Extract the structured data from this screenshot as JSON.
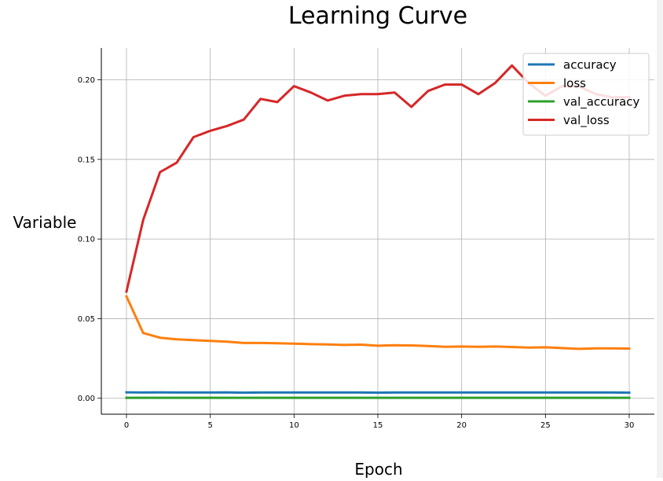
{
  "chart_data": {
    "type": "line",
    "title": "Learning Curve",
    "xlabel": "Epoch",
    "ylabel": "Variable",
    "xlim": [
      -1.5,
      31.5
    ],
    "ylim": [
      -0.01,
      0.22
    ],
    "xticks": [
      0,
      5,
      10,
      15,
      20,
      25,
      30
    ],
    "xtick_labels": [
      "0",
      "5",
      "10",
      "15",
      "20",
      "25",
      "30"
    ],
    "yticks": [
      0.0,
      0.05,
      0.1,
      0.15,
      0.2
    ],
    "ytick_labels": [
      "0.00",
      "0.05",
      "0.10",
      "0.15",
      "0.20"
    ],
    "grid": true,
    "legend_position": "top-right",
    "x": [
      0,
      1,
      2,
      3,
      4,
      5,
      6,
      7,
      8,
      9,
      10,
      11,
      12,
      13,
      14,
      15,
      16,
      17,
      18,
      19,
      20,
      21,
      22,
      23,
      24,
      25,
      26,
      27,
      28,
      29,
      30
    ],
    "series": [
      {
        "name": "accuracy",
        "color": "#1f77b4",
        "values": [
          0.0037,
          0.0036,
          0.0037,
          0.0036,
          0.0036,
          0.0036,
          0.0037,
          0.0035,
          0.0036,
          0.0036,
          0.0036,
          0.0036,
          0.0036,
          0.0036,
          0.0036,
          0.0035,
          0.0036,
          0.0036,
          0.0036,
          0.0036,
          0.0036,
          0.0036,
          0.0036,
          0.0036,
          0.0036,
          0.0036,
          0.0036,
          0.0036,
          0.0036,
          0.0036,
          0.0035
        ]
      },
      {
        "name": "loss",
        "color": "#ff7f0e",
        "values": [
          0.064,
          0.041,
          0.038,
          0.037,
          0.0365,
          0.036,
          0.0355,
          0.0347,
          0.0347,
          0.0345,
          0.0343,
          0.034,
          0.0338,
          0.0335,
          0.0337,
          0.033,
          0.0333,
          0.0332,
          0.0328,
          0.0323,
          0.0325,
          0.0323,
          0.0325,
          0.0322,
          0.0318,
          0.032,
          0.0315,
          0.031,
          0.0313,
          0.0313,
          0.0312
        ]
      },
      {
        "name": "val_accuracy",
        "color": "#2ca02c",
        "values": [
          0.0003,
          0.0003,
          0.0003,
          0.0003,
          0.0003,
          0.0003,
          0.0003,
          0.0003,
          0.0003,
          0.0003,
          0.0003,
          0.0003,
          0.0003,
          0.0003,
          0.0003,
          0.0003,
          0.0003,
          0.0003,
          0.0003,
          0.0003,
          0.0003,
          0.0003,
          0.0003,
          0.0003,
          0.0003,
          0.0003,
          0.0003,
          0.0003,
          0.0003,
          0.0003,
          0.0003
        ]
      },
      {
        "name": "val_loss",
        "color": "#d62728",
        "values": [
          0.067,
          0.112,
          0.142,
          0.148,
          0.164,
          0.168,
          0.171,
          0.175,
          0.188,
          0.186,
          0.196,
          0.192,
          0.187,
          0.19,
          0.191,
          0.191,
          0.192,
          0.183,
          0.193,
          0.197,
          0.197,
          0.191,
          0.198,
          0.209,
          0.198,
          0.19,
          0.196,
          0.196,
          0.191,
          0.189,
          0.189
        ]
      }
    ]
  }
}
